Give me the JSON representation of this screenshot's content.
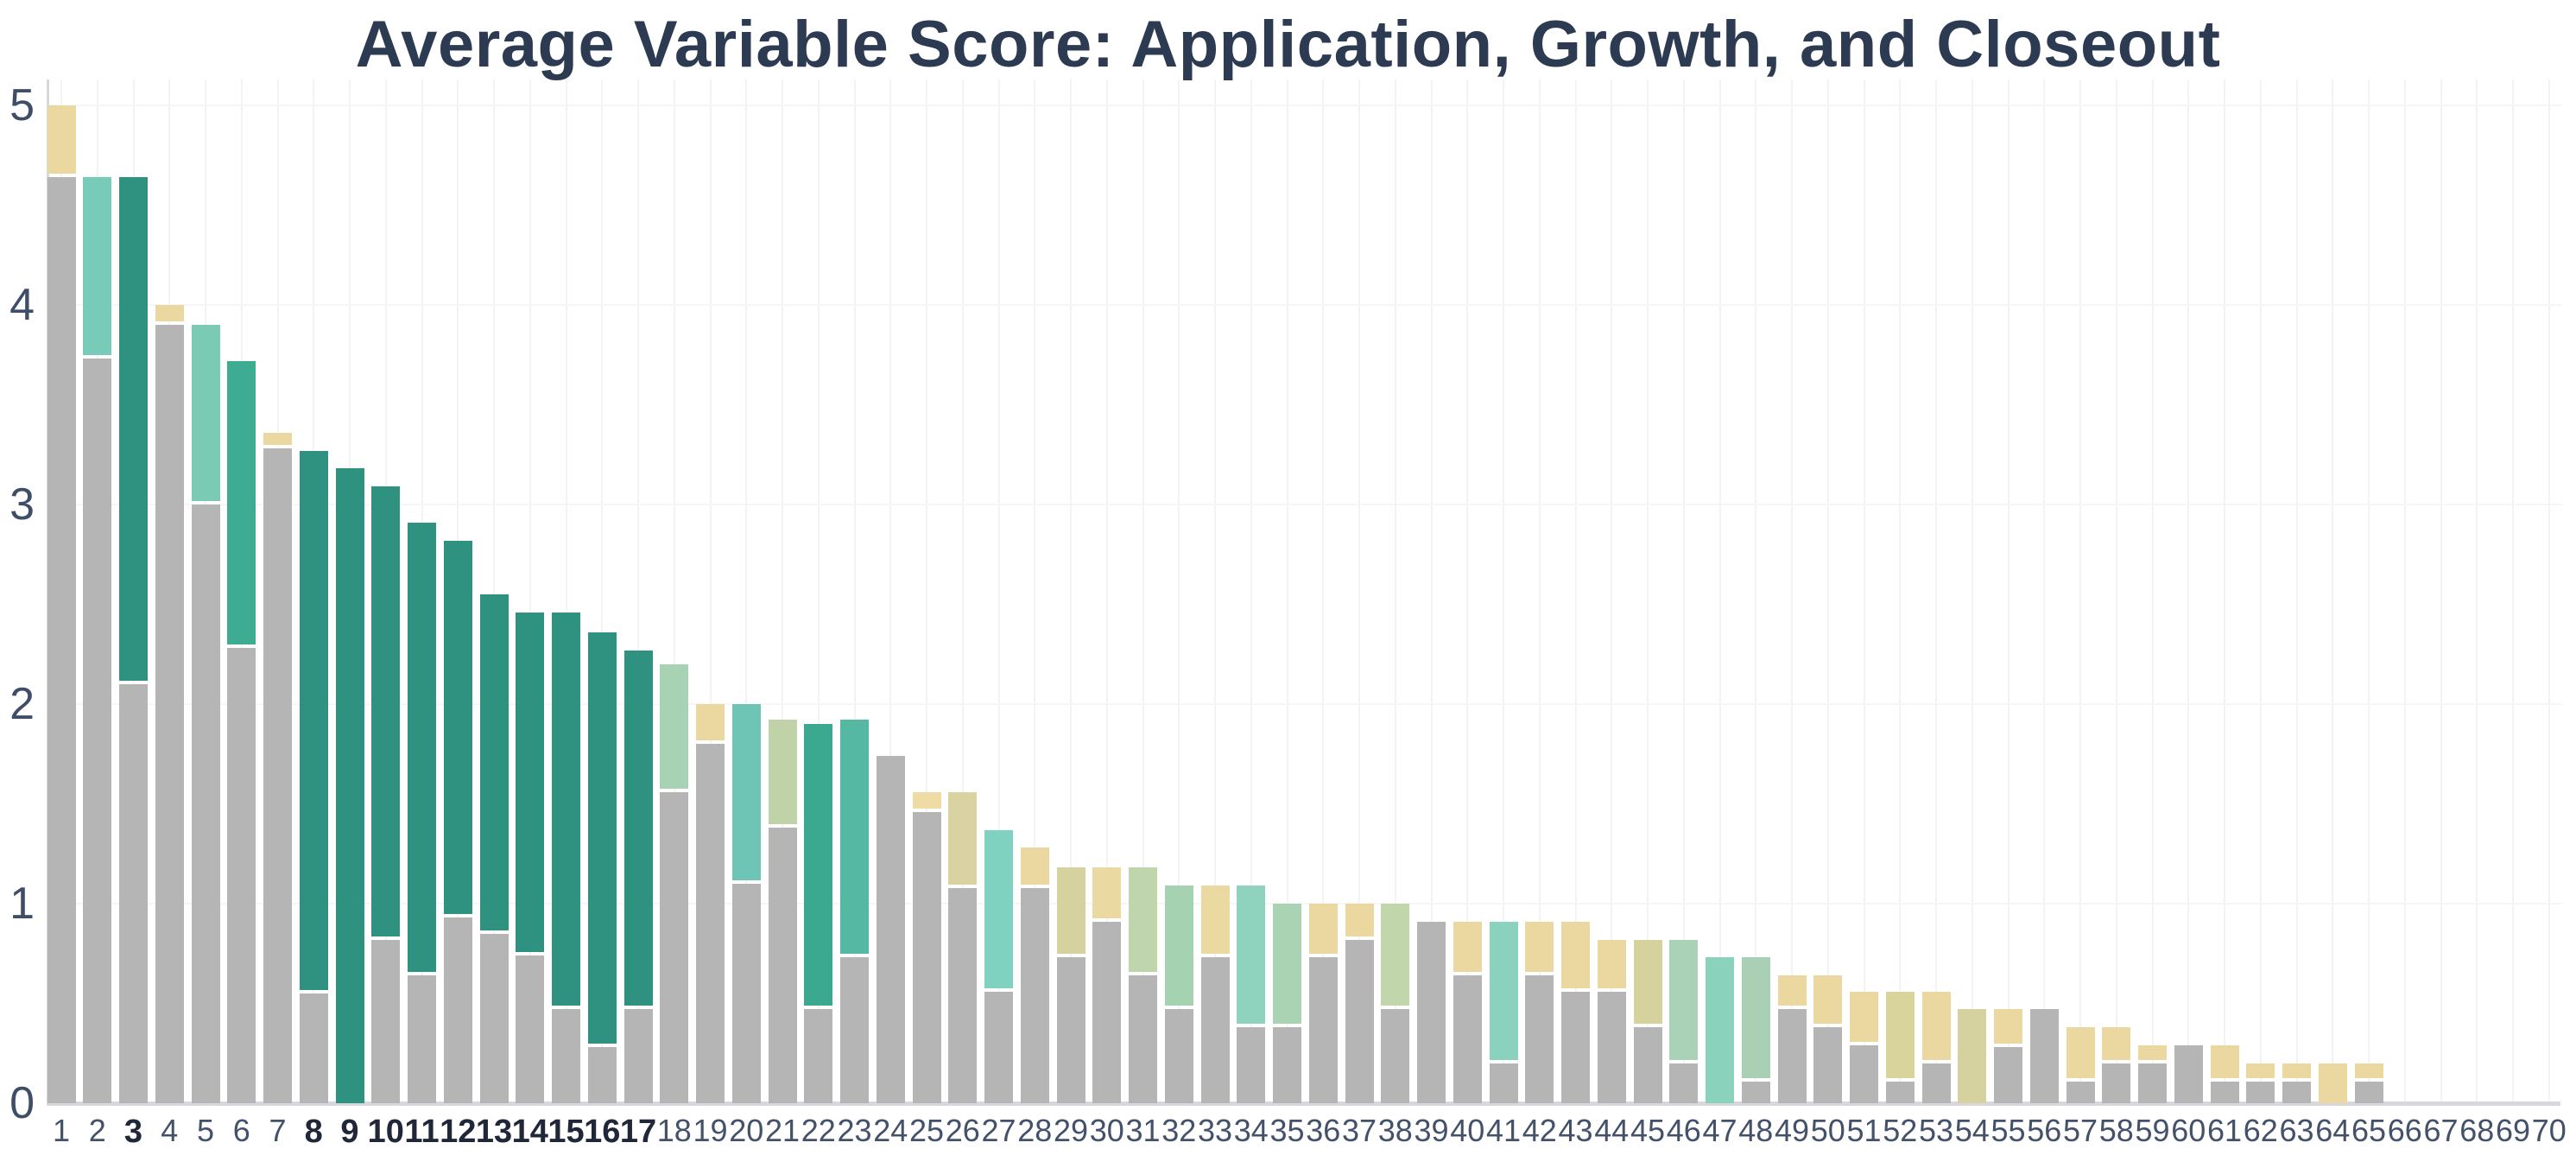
{
  "chart_data": {
    "type": "bar",
    "stacked": true,
    "title": "Average Variable Score: Application, Growth, and Closeout",
    "title_color": "#2c3a52",
    "xlabel": "",
    "ylabel": "",
    "ylim": [
      0,
      5
    ],
    "yticks": [
      "0",
      "1",
      "2",
      "3",
      "4",
      "5"
    ],
    "grid": {
      "horizontal": "faint lines at integer values 1-5",
      "vertical": "faint line at every category position"
    },
    "legend": null,
    "base_color": "#b5b5b5",
    "axis_line_color": "#d8d8dc",
    "tick_label_color": "#44516a",
    "tick_label_bold_color": "#202739",
    "categories": [
      "1",
      "2",
      "3",
      "4",
      "5",
      "6",
      "7",
      "8",
      "9",
      "10",
      "11",
      "12",
      "13",
      "14",
      "15",
      "16",
      "17",
      "18",
      "19",
      "20",
      "21",
      "22",
      "23",
      "24",
      "25",
      "26",
      "27",
      "28",
      "29",
      "30",
      "31",
      "32",
      "33",
      "34",
      "35",
      "36",
      "37",
      "38",
      "39",
      "40",
      "41",
      "42",
      "43",
      "44",
      "45",
      "46",
      "47",
      "48",
      "49",
      "50",
      "51",
      "52",
      "53",
      "54",
      "55",
      "56",
      "57",
      "58",
      "59",
      "60",
      "61",
      "62",
      "63",
      "64",
      "65",
      "66",
      "67",
      "68",
      "69",
      "70"
    ],
    "bold_categories": [
      "3",
      "8",
      "9",
      "10",
      "11",
      "12",
      "13",
      "14",
      "15",
      "16",
      "17"
    ],
    "bars": [
      {
        "label": "1",
        "base": 4.64,
        "total": 5.0,
        "top_color": "#ebd8a0",
        "bold": false
      },
      {
        "label": "2",
        "base": 3.73,
        "total": 4.64,
        "top_color": "#77cbb8",
        "bold": false
      },
      {
        "label": "3",
        "base": 2.1,
        "total": 4.64,
        "top_color": "#2f9180",
        "bold": true
      },
      {
        "label": "4",
        "base": 3.9,
        "total": 4.0,
        "top_color": "#ebd8a0",
        "bold": false
      },
      {
        "label": "5",
        "base": 3.0,
        "total": 3.9,
        "top_color": "#7bcbb4",
        "bold": false
      },
      {
        "label": "6",
        "base": 2.28,
        "total": 3.72,
        "top_color": "#3eac93",
        "bold": false
      },
      {
        "label": "7",
        "base": 3.28,
        "total": 3.36,
        "top_color": "#ebd8a0",
        "bold": false
      },
      {
        "label": "8",
        "base": 0.55,
        "total": 3.27,
        "top_color": "#2f9180",
        "bold": true
      },
      {
        "label": "9",
        "base": 0.0,
        "total": 3.18,
        "top_color": "#2f9180",
        "bold": true
      },
      {
        "label": "10",
        "base": 0.82,
        "total": 3.09,
        "top_color": "#2f9180",
        "bold": true
      },
      {
        "label": "11",
        "base": 0.64,
        "total": 2.91,
        "top_color": "#2f9180",
        "bold": true
      },
      {
        "label": "12",
        "base": 0.93,
        "total": 2.82,
        "top_color": "#2f9180",
        "bold": true
      },
      {
        "label": "13",
        "base": 0.85,
        "total": 2.55,
        "top_color": "#2f9180",
        "bold": true
      },
      {
        "label": "14",
        "base": 0.74,
        "total": 2.46,
        "top_color": "#2f9180",
        "bold": true
      },
      {
        "label": "15",
        "base": 0.47,
        "total": 2.46,
        "top_color": "#2f9180",
        "bold": true
      },
      {
        "label": "16",
        "base": 0.28,
        "total": 2.36,
        "top_color": "#2f9180",
        "bold": true
      },
      {
        "label": "17",
        "base": 0.47,
        "total": 2.27,
        "top_color": "#2f9180",
        "bold": true
      },
      {
        "label": "18",
        "base": 1.56,
        "total": 2.2,
        "top_color": "#a8d2b4",
        "bold": false
      },
      {
        "label": "19",
        "base": 1.8,
        "total": 2.0,
        "top_color": "#ebd8a0",
        "bold": false
      },
      {
        "label": "20",
        "base": 1.1,
        "total": 2.0,
        "top_color": "#6fc5b5",
        "bold": false
      },
      {
        "label": "21",
        "base": 1.38,
        "total": 1.92,
        "top_color": "#c0d3a8",
        "bold": false
      },
      {
        "label": "22",
        "base": 0.47,
        "total": 1.9,
        "top_color": "#3ba990",
        "bold": false
      },
      {
        "label": "23",
        "base": 0.73,
        "total": 1.92,
        "top_color": "#55b8a3",
        "bold": false
      },
      {
        "label": "24",
        "base": 1.74,
        "total": 1.74,
        "top_color": null,
        "bold": false
      },
      {
        "label": "25",
        "base": 1.46,
        "total": 1.56,
        "top_color": "#efdca4",
        "bold": false
      },
      {
        "label": "26",
        "base": 1.08,
        "total": 1.56,
        "top_color": "#d8d3a0",
        "bold": false
      },
      {
        "label": "27",
        "base": 0.56,
        "total": 1.37,
        "top_color": "#7fd1c0",
        "bold": false
      },
      {
        "label": "28",
        "base": 1.08,
        "total": 1.28,
        "top_color": "#ebd8a0",
        "bold": false
      },
      {
        "label": "29",
        "base": 0.73,
        "total": 1.18,
        "top_color": "#d5d2a0",
        "bold": false
      },
      {
        "label": "30",
        "base": 0.91,
        "total": 1.18,
        "top_color": "#ebd9a2",
        "bold": false
      },
      {
        "label": "31",
        "base": 0.64,
        "total": 1.18,
        "top_color": "#bfd5ac",
        "bold": false
      },
      {
        "label": "32",
        "base": 0.47,
        "total": 1.09,
        "top_color": "#a5d2b0",
        "bold": false
      },
      {
        "label": "33",
        "base": 0.73,
        "total": 1.09,
        "top_color": "#ebd9a2",
        "bold": false
      },
      {
        "label": "34",
        "base": 0.38,
        "total": 1.09,
        "top_color": "#8fd2bd",
        "bold": false
      },
      {
        "label": "35",
        "base": 0.38,
        "total": 1.0,
        "top_color": "#a9d3b3",
        "bold": false
      },
      {
        "label": "36",
        "base": 0.73,
        "total": 1.0,
        "top_color": "#ebd8a0",
        "bold": false
      },
      {
        "label": "37",
        "base": 0.82,
        "total": 1.0,
        "top_color": "#ebd8a0",
        "bold": false
      },
      {
        "label": "38",
        "base": 0.47,
        "total": 1.0,
        "top_color": "#c2d6ab",
        "bold": false
      },
      {
        "label": "39",
        "base": 0.91,
        "total": 0.91,
        "top_color": null,
        "bold": false
      },
      {
        "label": "40",
        "base": 0.64,
        "total": 0.91,
        "top_color": "#ebd8a0",
        "bold": false
      },
      {
        "label": "41",
        "base": 0.2,
        "total": 0.91,
        "top_color": "#8bd2be",
        "bold": false
      },
      {
        "label": "42",
        "base": 0.64,
        "total": 0.91,
        "top_color": "#ebd8a0",
        "bold": false
      },
      {
        "label": "43",
        "base": 0.56,
        "total": 0.91,
        "top_color": "#ebd8a0",
        "bold": false
      },
      {
        "label": "44",
        "base": 0.56,
        "total": 0.82,
        "top_color": "#ebd8a0",
        "bold": false
      },
      {
        "label": "45",
        "base": 0.38,
        "total": 0.82,
        "top_color": "#d6d29e",
        "bold": false
      },
      {
        "label": "46",
        "base": 0.2,
        "total": 0.82,
        "top_color": "#a9d2b6",
        "bold": false
      },
      {
        "label": "47",
        "base": 0.0,
        "total": 0.73,
        "top_color": "#8bd2bc",
        "bold": false
      },
      {
        "label": "48",
        "base": 0.11,
        "total": 0.73,
        "top_color": "#a9d0b4",
        "bold": false
      },
      {
        "label": "49",
        "base": 0.47,
        "total": 0.64,
        "top_color": "#ebd8a0",
        "bold": false
      },
      {
        "label": "50",
        "base": 0.38,
        "total": 0.64,
        "top_color": "#ebd8a0",
        "bold": false
      },
      {
        "label": "51",
        "base": 0.29,
        "total": 0.56,
        "top_color": "#ebd8a0",
        "bold": false
      },
      {
        "label": "52",
        "base": 0.11,
        "total": 0.56,
        "top_color": "#d9d49c",
        "bold": false
      },
      {
        "label": "53",
        "base": 0.2,
        "total": 0.56,
        "top_color": "#ebd8a0",
        "bold": false
      },
      {
        "label": "54",
        "base": 0.0,
        "total": 0.47,
        "top_color": "#d6d2a0",
        "bold": false
      },
      {
        "label": "55",
        "base": 0.28,
        "total": 0.47,
        "top_color": "#ebd8a0",
        "bold": false
      },
      {
        "label": "56",
        "base": 0.47,
        "total": 0.47,
        "top_color": null,
        "bold": false
      },
      {
        "label": "57",
        "base": 0.11,
        "total": 0.38,
        "top_color": "#ebd8a0",
        "bold": false
      },
      {
        "label": "58",
        "base": 0.2,
        "total": 0.38,
        "top_color": "#ebd8a0",
        "bold": false
      },
      {
        "label": "59",
        "base": 0.2,
        "total": 0.29,
        "top_color": "#ebd8a0",
        "bold": false
      },
      {
        "label": "60",
        "base": 0.29,
        "total": 0.29,
        "top_color": null,
        "bold": false
      },
      {
        "label": "61",
        "base": 0.11,
        "total": 0.29,
        "top_color": "#ebd8a0",
        "bold": false
      },
      {
        "label": "62",
        "base": 0.11,
        "total": 0.2,
        "top_color": "#ebd8a0",
        "bold": false
      },
      {
        "label": "63",
        "base": 0.11,
        "total": 0.2,
        "top_color": "#ebd8a0",
        "bold": false
      },
      {
        "label": "64",
        "base": 0.0,
        "total": 0.2,
        "top_color": "#ebd8a0",
        "bold": false
      },
      {
        "label": "65",
        "base": 0.11,
        "total": 0.2,
        "top_color": "#ebd8a0",
        "bold": false
      },
      {
        "label": "66",
        "base": 0.0,
        "total": 0.0,
        "top_color": null,
        "bold": false
      },
      {
        "label": "67",
        "base": 0.0,
        "total": 0.0,
        "top_color": null,
        "bold": false
      },
      {
        "label": "68",
        "base": 0.0,
        "total": 0.0,
        "top_color": null,
        "bold": false
      },
      {
        "label": "69",
        "base": 0.0,
        "total": 0.0,
        "top_color": null,
        "bold": false
      },
      {
        "label": "70",
        "base": 0.0,
        "total": 0.0,
        "top_color": null,
        "bold": false
      }
    ]
  }
}
